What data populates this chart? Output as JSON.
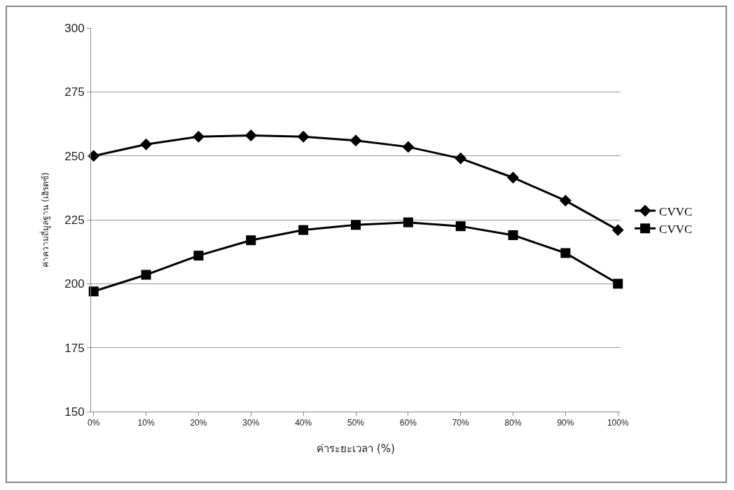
{
  "chart_data": {
    "type": "line",
    "xlabel": "ค่าระยะเวลา (%)",
    "ylabel": "ค่าความถี่มูลฐาน (เฮิรตซ์)",
    "categories": [
      "0%",
      "10%",
      "20%",
      "30%",
      "40%",
      "50%",
      "60%",
      "70%",
      "80%",
      "90%",
      "100%"
    ],
    "series": [
      {
        "name": "CVVC",
        "color": "#000000",
        "marker": "diamond",
        "values": [
          250,
          254.5,
          257.5,
          258,
          257.5,
          256,
          253.5,
          249,
          241.5,
          232.5,
          221
        ]
      },
      {
        "name": "CVVC",
        "color": "#000000",
        "marker": "square",
        "values": [
          197,
          203.5,
          211,
          217,
          221,
          223,
          224,
          222.5,
          219,
          212,
          200
        ]
      }
    ],
    "ylim": [
      150,
      300
    ],
    "yticks": [
      150,
      175,
      200,
      225,
      250,
      275,
      300
    ],
    "grid": "y",
    "legend": "right",
    "line_style": "solid"
  }
}
